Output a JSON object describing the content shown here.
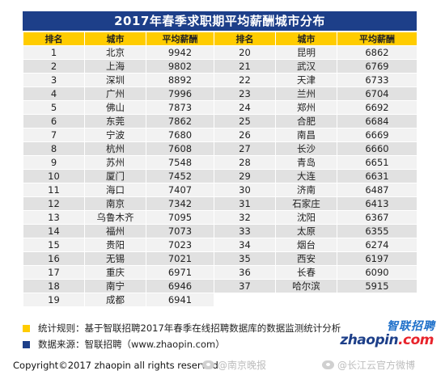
{
  "title": "2017年春季求职期平均薪酬城市分布",
  "headers": [
    "排名",
    "城市",
    "平均薪酬",
    "排名",
    "城市",
    "平均薪酬"
  ],
  "left": [
    {
      "rank": "1",
      "city": "北京",
      "salary": "9942"
    },
    {
      "rank": "2",
      "city": "上海",
      "salary": "9802"
    },
    {
      "rank": "3",
      "city": "深圳",
      "salary": "8892"
    },
    {
      "rank": "4",
      "city": "广州",
      "salary": "7996"
    },
    {
      "rank": "5",
      "city": "佛山",
      "salary": "7873"
    },
    {
      "rank": "6",
      "city": "东莞",
      "salary": "7862"
    },
    {
      "rank": "7",
      "city": "宁波",
      "salary": "7680"
    },
    {
      "rank": "8",
      "city": "杭州",
      "salary": "7608"
    },
    {
      "rank": "9",
      "city": "苏州",
      "salary": "7548"
    },
    {
      "rank": "10",
      "city": "厦门",
      "salary": "7452"
    },
    {
      "rank": "11",
      "city": "海口",
      "salary": "7407"
    },
    {
      "rank": "12",
      "city": "南京",
      "salary": "7342"
    },
    {
      "rank": "13",
      "city": "乌鲁木齐",
      "salary": "7095"
    },
    {
      "rank": "14",
      "city": "福州",
      "salary": "7073"
    },
    {
      "rank": "15",
      "city": "贵阳",
      "salary": "7023"
    },
    {
      "rank": "16",
      "city": "无锡",
      "salary": "7021"
    },
    {
      "rank": "17",
      "city": "重庆",
      "salary": "6971"
    },
    {
      "rank": "18",
      "city": "南宁",
      "salary": "6946"
    },
    {
      "rank": "19",
      "city": "成都",
      "salary": "6941"
    }
  ],
  "right": [
    {
      "rank": "20",
      "city": "昆明",
      "salary": "6862"
    },
    {
      "rank": "21",
      "city": "武汉",
      "salary": "6769"
    },
    {
      "rank": "22",
      "city": "天津",
      "salary": "6733"
    },
    {
      "rank": "23",
      "city": "兰州",
      "salary": "6704"
    },
    {
      "rank": "24",
      "city": "郑州",
      "salary": "6692"
    },
    {
      "rank": "25",
      "city": "合肥",
      "salary": "6684"
    },
    {
      "rank": "26",
      "city": "南昌",
      "salary": "6669"
    },
    {
      "rank": "27",
      "city": "长沙",
      "salary": "6660"
    },
    {
      "rank": "28",
      "city": "青岛",
      "salary": "6651"
    },
    {
      "rank": "29",
      "city": "大连",
      "salary": "6631"
    },
    {
      "rank": "30",
      "city": "济南",
      "salary": "6487"
    },
    {
      "rank": "31",
      "city": "石家庄",
      "salary": "6413"
    },
    {
      "rank": "32",
      "city": "沈阳",
      "salary": "6367"
    },
    {
      "rank": "33",
      "city": "太原",
      "salary": "6355"
    },
    {
      "rank": "34",
      "city": "烟台",
      "salary": "6274"
    },
    {
      "rank": "35",
      "city": "西安",
      "salary": "6197"
    },
    {
      "rank": "36",
      "city": "长春",
      "salary": "6090"
    },
    {
      "rank": "37",
      "city": "哈尔滨",
      "salary": "5915"
    }
  ],
  "notes": {
    "rule": "统计规则：基于智联招聘2017年春季在线招聘数据库的数据监测统计分析",
    "source": "数据来源：智联招聘（www.zhaopin.com）"
  },
  "logo": {
    "cn": "智联招聘",
    "en_main": "zhaopin",
    "en_tail": ".com"
  },
  "copyright": "Copyright©2017 zhaopin all rights reserved",
  "watermarks": [
    "@南京晚报",
    "@长江云官方微博"
  ],
  "colors": {
    "title_bg": "#1d3f89",
    "header_bg": "#ffcc00",
    "row_light": "#f2f2f2",
    "row_dark": "#e1e1e1"
  }
}
